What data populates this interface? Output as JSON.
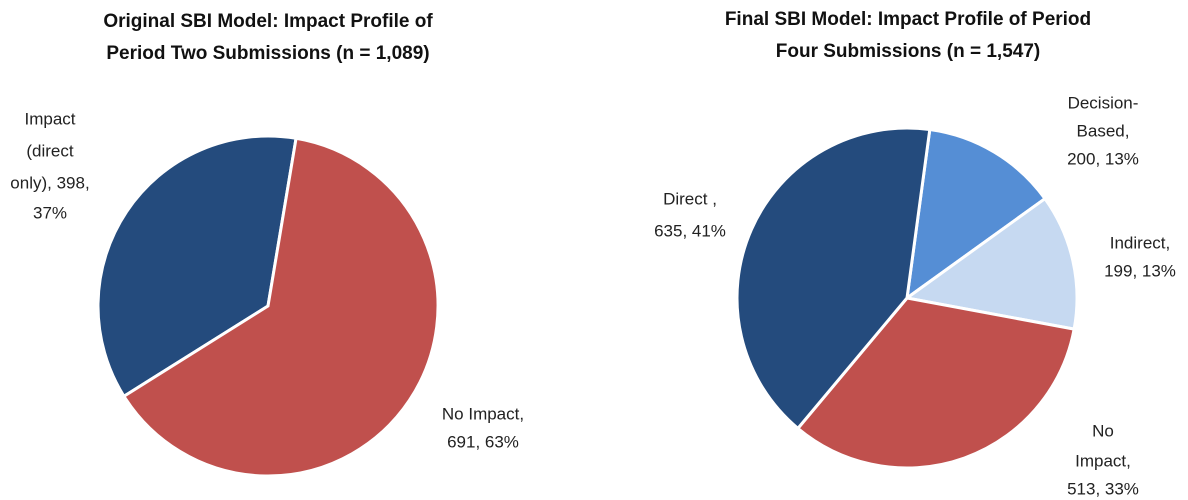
{
  "chart_data": [
    {
      "type": "pie",
      "title": [
        "Original SBI Model: Impact Profile of",
        "Period Two Submissions (n = 1,089)"
      ],
      "values": [
        398,
        691
      ],
      "data_labels": [
        [
          "Impact",
          "(direct",
          "only), 398,",
          "37%"
        ],
        [
          "No Impact,",
          "691, 63%"
        ]
      ],
      "colors": [
        "#244b7d",
        "#c0504d"
      ]
    },
    {
      "type": "pie",
      "title": [
        "Final SBI Model: Impact Profile of Period",
        "Four Submissions (n = 1,547)"
      ],
      "values": [
        200,
        199,
        513,
        635
      ],
      "data_labels": [
        [
          "Decision-",
          "Based,",
          "200, 13%"
        ],
        [
          "Indirect,",
          "199, 13%"
        ],
        [
          "No",
          "Impact,",
          "513, 33%"
        ],
        [
          "Direct ,",
          "635, 41%"
        ]
      ],
      "colors": [
        "#558ed5",
        "#c6d9f1",
        "#c0504d",
        "#244b7d"
      ]
    }
  ]
}
